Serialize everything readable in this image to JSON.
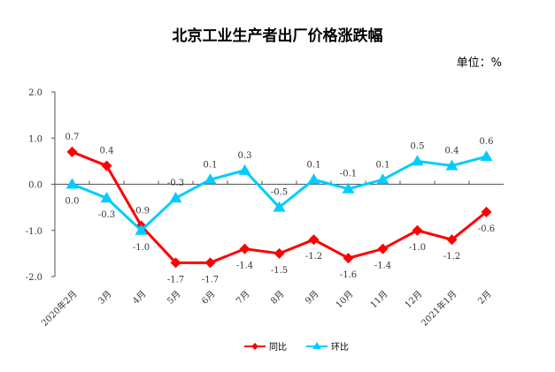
{
  "chart_data": {
    "type": "line",
    "title": "北京工业生产者出厂价格涨跌幅",
    "unit_label": "单位：%",
    "xlabel": "",
    "ylabel": "",
    "ylim": [
      -2.0,
      2.0
    ],
    "yticks": [
      "2.0",
      "1.0",
      "0.0",
      "-1.0",
      "-2.0"
    ],
    "ytick_values": [
      2,
      1,
      0,
      -1,
      -2
    ],
    "categories": [
      "2020年2月",
      "3月",
      "4月",
      "5月",
      "6月",
      "7月",
      "8月",
      "9月",
      "10月",
      "11月",
      "12月",
      "2021年1月",
      "2月"
    ],
    "legend_position": "bottom",
    "series": [
      {
        "name": "同比",
        "color": "#ff0000",
        "marker": "diamond",
        "values": [
          0.7,
          0.4,
          -0.9,
          -1.7,
          -1.7,
          -1.4,
          -1.5,
          -1.2,
          -1.6,
          -1.4,
          -1.0,
          -1.2,
          -0.6
        ],
        "labels": [
          "0.7",
          "0.4",
          "-0.9",
          "-1.7",
          "-1.7",
          "-1.4",
          "-1.5",
          "-1.2",
          "-1.6",
          "-1.4",
          "-1.0",
          "-1.2",
          "-0.6"
        ]
      },
      {
        "name": "环比",
        "color": "#00ccff",
        "marker": "triangle",
        "values": [
          0.0,
          -0.3,
          -1.0,
          -0.3,
          0.1,
          0.3,
          -0.5,
          0.1,
          -0.1,
          0.1,
          0.5,
          0.4,
          0.6
        ],
        "labels": [
          "0.0",
          "-0.3",
          "-1.0",
          "-0.3",
          "0.1",
          "0.3",
          "-0.5",
          "0.1",
          "-0.1",
          "0.1",
          "0.5",
          "0.4",
          "0.6"
        ]
      }
    ]
  }
}
